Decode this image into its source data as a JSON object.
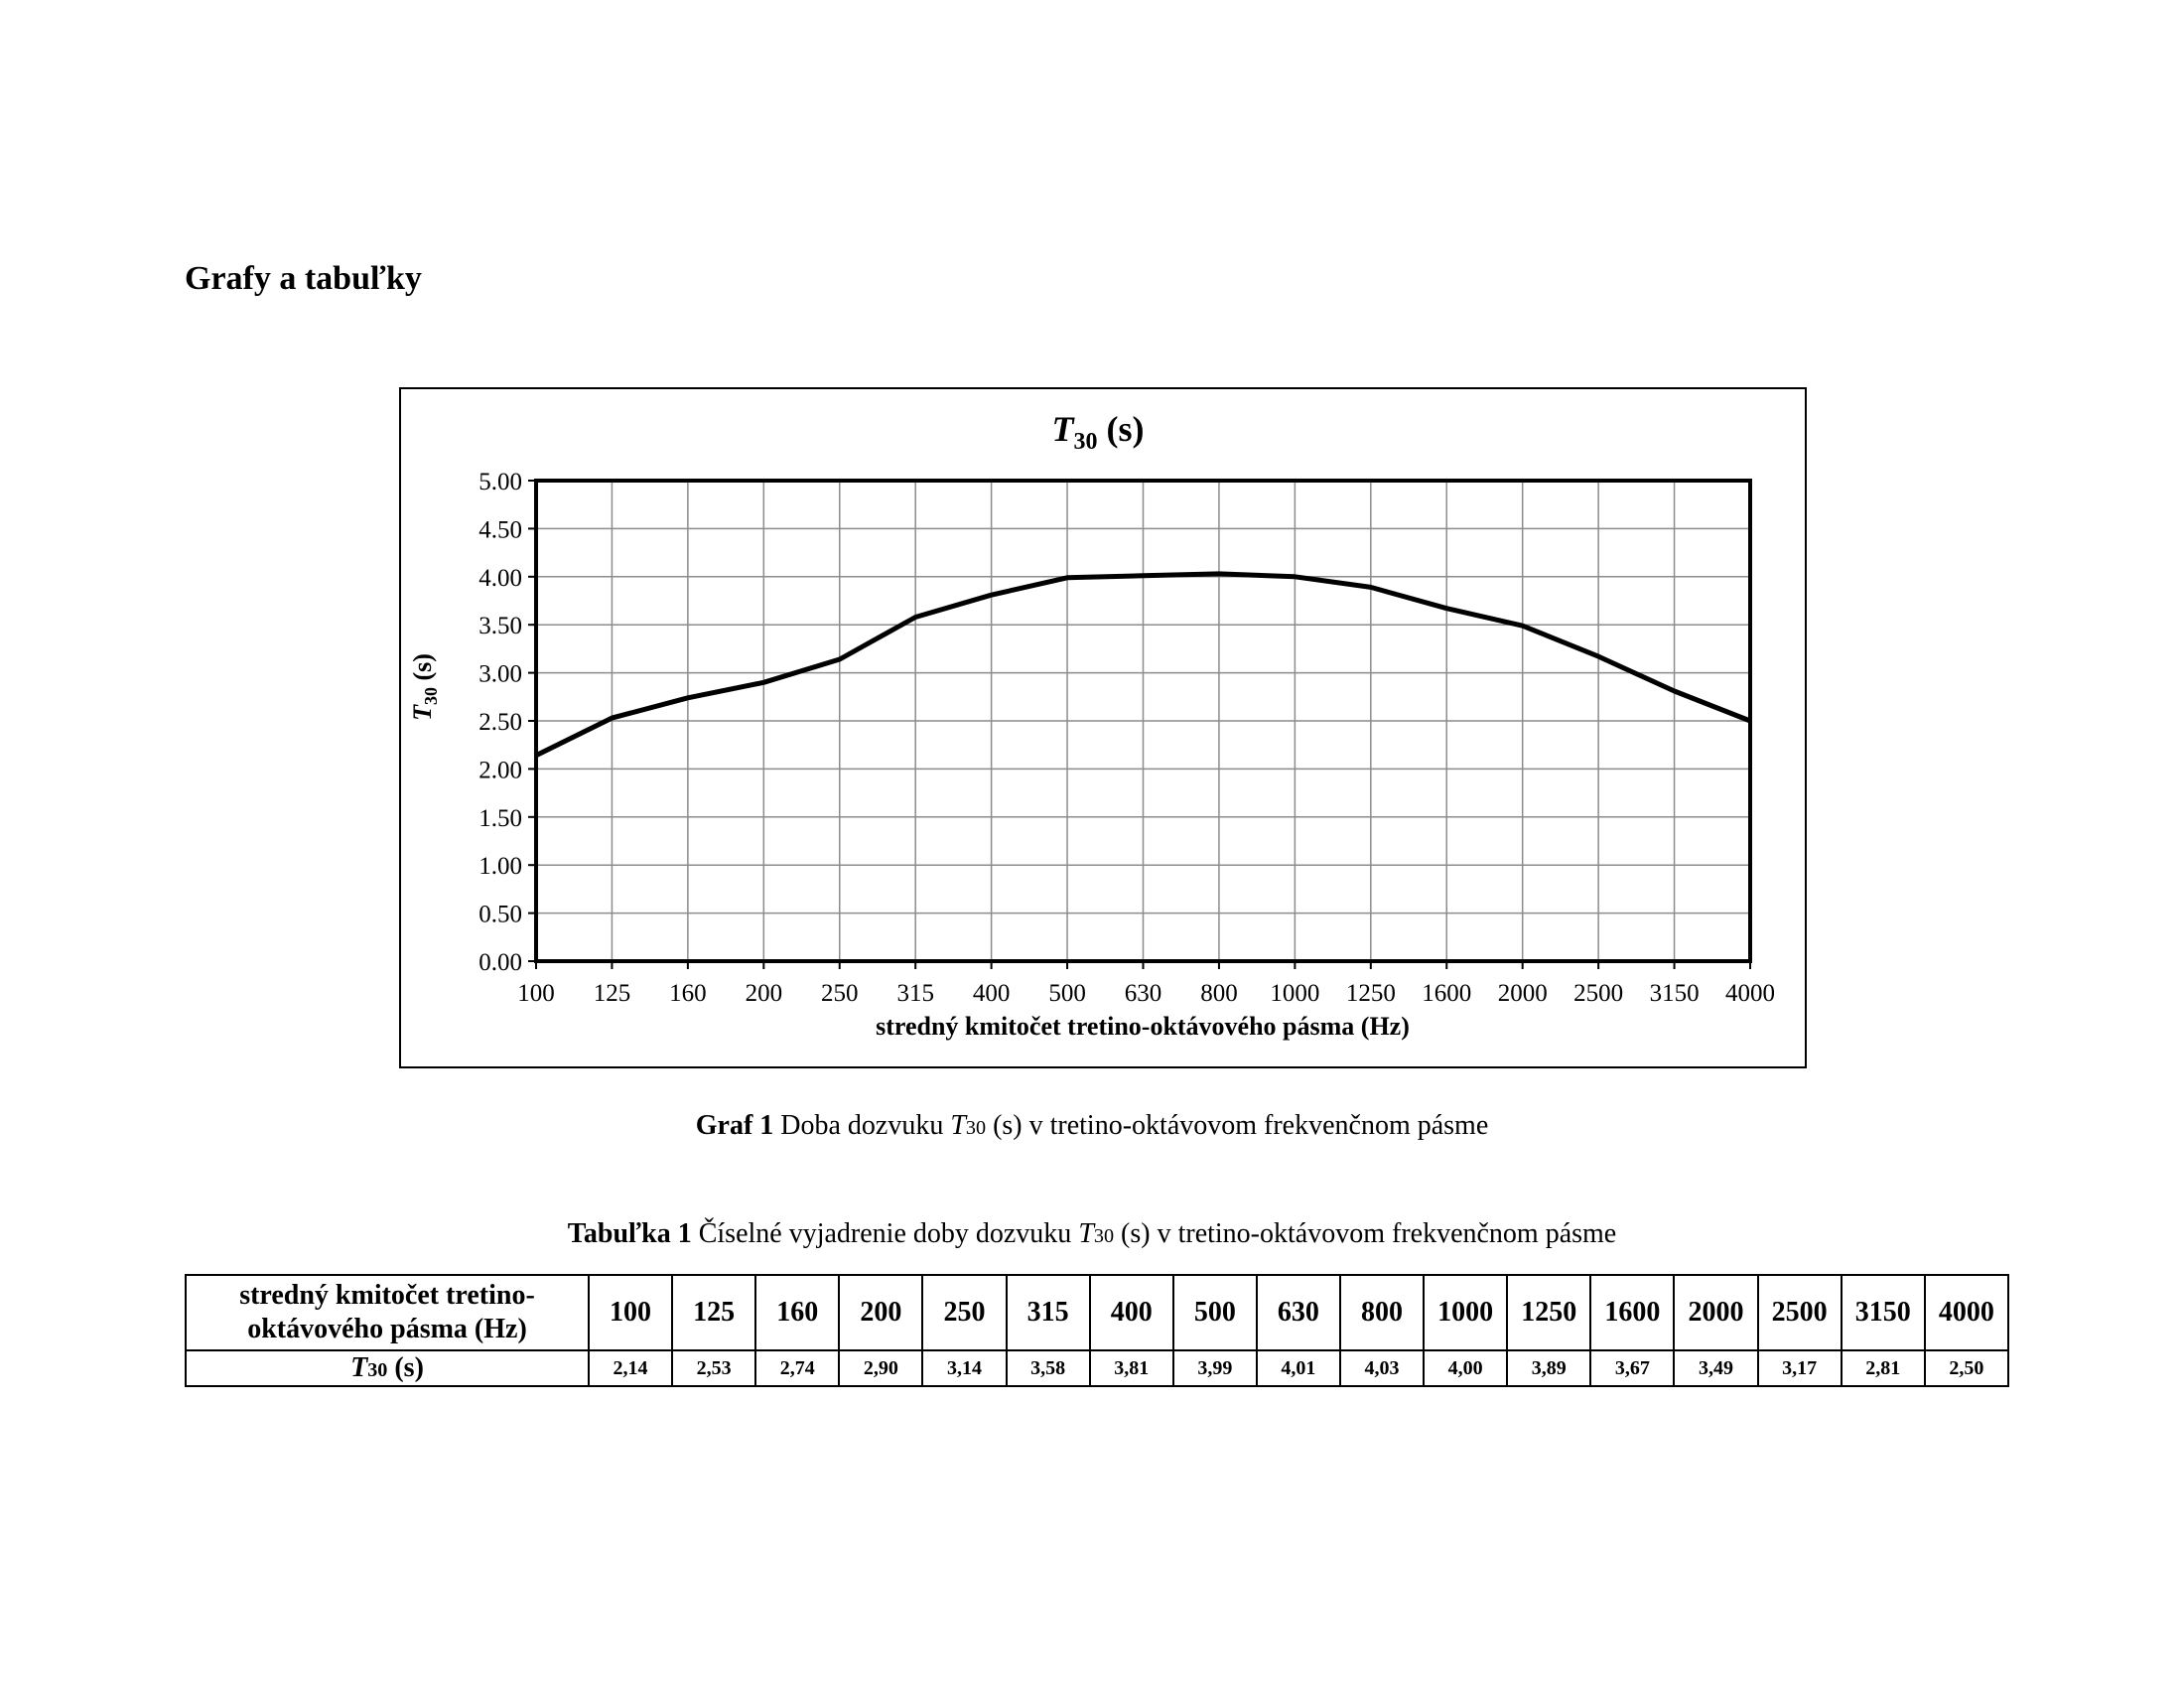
{
  "page": {
    "heading": "Grafy a tabuľky",
    "graph_caption": {
      "label": "Graf 1",
      "pre": "Doba dozvuku ",
      "var": "T",
      "sub": "30",
      "post": "(s) v tretino-oktávovom frekvenčnom pásme"
    },
    "table_caption": {
      "label": "Tabuľka 1",
      "pre": " Číselné vyjadrenie doby dozvuku ",
      "var": "T",
      "sub": "30",
      "post": "(s) v tretino-oktávovom frekvenčnom pásme"
    }
  },
  "table": {
    "header_label": "stredný kmitočet tretino-oktávového pásma (Hz)",
    "row_label_var": "T",
    "row_label_sub": "30",
    "row_label_unit": " (s)",
    "frequencies": [
      "100",
      "125",
      "160",
      "200",
      "250",
      "315",
      "400",
      "500",
      "630",
      "800",
      "1000",
      "1250",
      "1600",
      "2000",
      "2500",
      "3150",
      "4000"
    ],
    "values": [
      "2,14",
      "2,53",
      "2,74",
      "2,90",
      "3,14",
      "3,58",
      "3,81",
      "3,99",
      "4,01",
      "4,03",
      "4,00",
      "3,89",
      "3,67",
      "3,49",
      "3,17",
      "2,81",
      "2,50"
    ]
  },
  "chart_data": {
    "type": "line",
    "title_var": "T",
    "title_sub": "30",
    "title_unit": " (s)",
    "ylabel_var": "T",
    "ylabel_sub": "30",
    "ylabel_unit": " (s)",
    "xlabel": "stredný kmitočet tretino-oktávového pásma (Hz)",
    "categories": [
      "100",
      "125",
      "160",
      "200",
      "250",
      "315",
      "400",
      "500",
      "630",
      "800",
      "1000",
      "1250",
      "1600",
      "2000",
      "2500",
      "3150",
      "4000"
    ],
    "series": [
      {
        "values": [
          2.14,
          2.53,
          2.74,
          2.9,
          3.14,
          3.58,
          3.81,
          3.99,
          4.01,
          4.03,
          4.0,
          3.89,
          3.67,
          3.49,
          3.17,
          2.81,
          2.5
        ]
      }
    ],
    "yticks": [
      "0.00",
      "0.50",
      "1.00",
      "1.50",
      "2.00",
      "2.50",
      "3.00",
      "3.50",
      "4.00",
      "4.50",
      "5.00"
    ],
    "ylim": [
      0,
      5
    ],
    "grid": true,
    "legend": "none",
    "colors": {
      "line": "#000000",
      "grid": "#8c8c8c",
      "plot_border": "#000000"
    }
  }
}
